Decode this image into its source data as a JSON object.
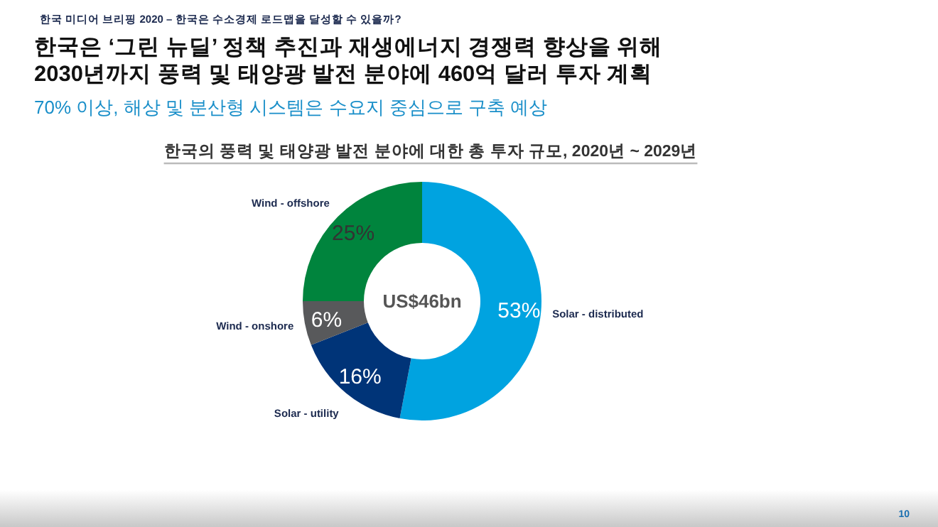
{
  "chart_data": {
    "type": "donut",
    "title": "한국은 ‘그린 뉴딜’ 정책 추진과 재생에너지 경쟁력 향상을 위해\n2030년까지 풍력 및 태양광 발전 분야에 460억 달러 투자 계획",
    "subtitle": "70% 이상, 해상 및 분산형 시스템은 수요지 중심으로 구축 예상",
    "annotations": [
      "한국 미디어 브리핑 2020 – 한국은 수소경제 로드맵을 달성할 수 있을까?",
      "한국의  풍력 및 태양광 발전 분야에 대한 총 투자 규모, 2020년 ~ 2029년",
      "US$46bn",
      "10"
    ],
    "categories": [
      "Solar - distributed",
      "Solar - utility",
      "Wind - onshore",
      "Wind - offshore"
    ],
    "values": [
      53,
      16,
      6,
      25
    ],
    "value_labels": [
      "53%",
      "16%",
      "6%",
      "25%"
    ],
    "colors": [
      "#00a3e0",
      "#003478",
      "#58595b",
      "#00843d"
    ]
  }
}
